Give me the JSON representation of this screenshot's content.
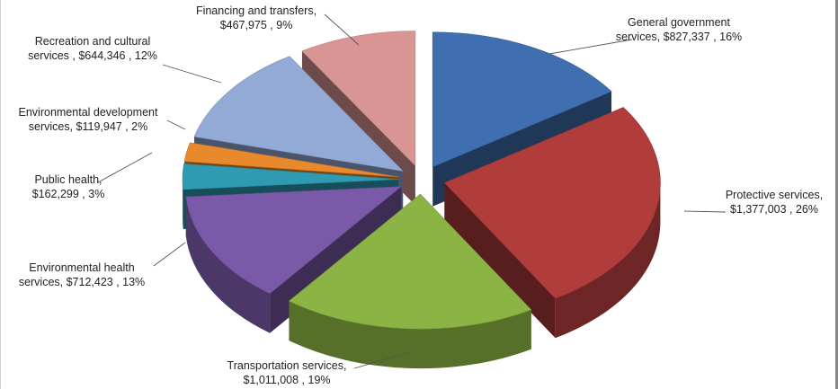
{
  "chart_data": {
    "type": "pie",
    "title": "",
    "style": "3d-exploded",
    "series": [
      {
        "name": "",
        "values": [
          827337,
          1377003,
          1011008,
          712423,
          162299,
          119947,
          644346,
          467975
        ]
      }
    ],
    "slices": [
      {
        "label": "General government services",
        "value": 827337,
        "percent": 16,
        "color": "#3f6fb0",
        "label_lines": [
          "General government",
          "services, $827,337 , 16%"
        ]
      },
      {
        "label": "Protective services",
        "value": 1377003,
        "percent": 26,
        "color": "#b03c3c",
        "label_lines": [
          "Protective services,",
          "$1,377,003 , 26%"
        ]
      },
      {
        "label": "Transportation services",
        "value": 1011008,
        "percent": 19,
        "color": "#8bb444",
        "label_lines": [
          "Transportation services,",
          "$1,011,008 , 19%"
        ]
      },
      {
        "label": "Environmental health services",
        "value": 712423,
        "percent": 13,
        "color": "#7a5aa8",
        "label_lines": [
          "Environmental health",
          "services,  $712,423 , 13%"
        ]
      },
      {
        "label": "Public health",
        "value": 162299,
        "percent": 3,
        "color": "#2e9bb3",
        "label_lines": [
          "Public health,",
          "$162,299 , 3%"
        ]
      },
      {
        "label": "Environmental development services",
        "value": 119947,
        "percent": 2,
        "color": "#e88a2c",
        "label_lines": [
          "Environmental development",
          "services,  $119,947 , 2%"
        ]
      },
      {
        "label": "Recreation and cultural services",
        "value": 644346,
        "percent": 12,
        "color": "#93a9d6",
        "label_lines": [
          "Recreation and cultural",
          "services ,  $644,346 , 12%"
        ]
      },
      {
        "label": "Financing and transfers",
        "value": 467975,
        "percent": 9,
        "color": "#d99594",
        "label_lines": [
          "Financing and transfers,",
          "$467,975 , 9%"
        ]
      }
    ]
  }
}
